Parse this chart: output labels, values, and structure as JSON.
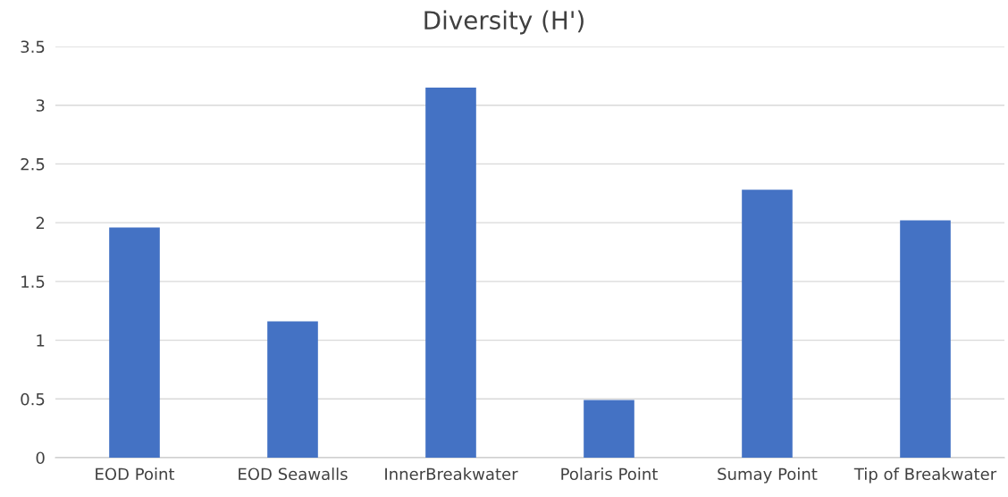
{
  "chart_data": {
    "type": "bar",
    "title": "Diversity (H')",
    "categories": [
      "EOD Point",
      "EOD Seawalls",
      "InnerBreakwater",
      "Polaris Point",
      "Sumay Point",
      "Tip of Breakwater"
    ],
    "values": [
      1.96,
      1.16,
      3.15,
      0.49,
      2.28,
      2.02
    ],
    "color": "#4472c4",
    "ylim": [
      0,
      3.5
    ],
    "yticks": [
      0,
      0.5,
      1,
      1.5,
      2,
      2.5,
      3,
      3.5
    ],
    "grid": "y",
    "legend": false
  }
}
